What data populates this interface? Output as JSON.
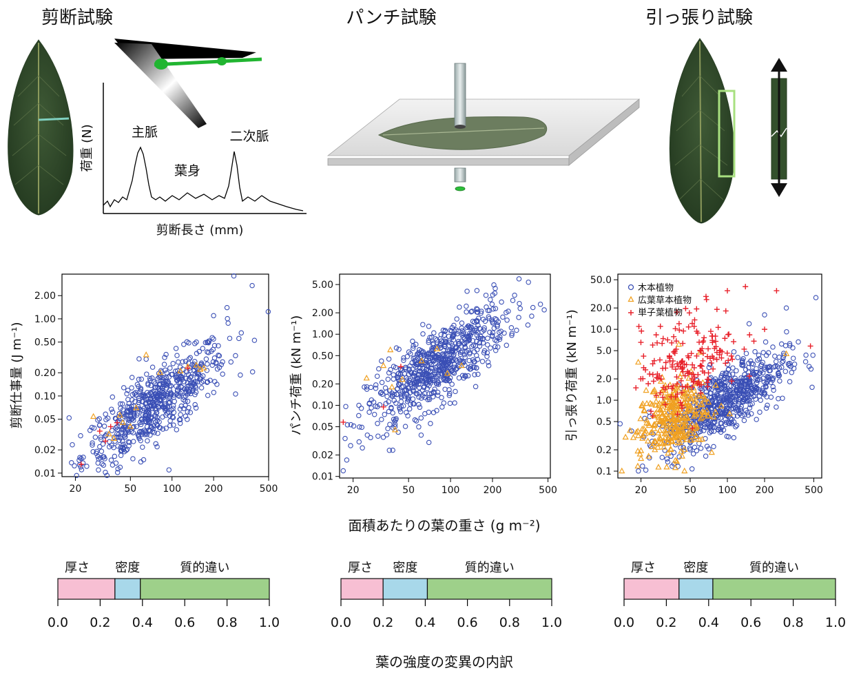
{
  "panels": [
    {
      "title": "剪断試験"
    },
    {
      "title": "パンチ試験"
    },
    {
      "title": "引っ張り試験"
    }
  ],
  "shear_trace": {
    "ylabel": "荷重 (N)",
    "xlabel": "剪断長さ (mm)",
    "labels": {
      "midrib": "主脈",
      "lamina": "葉身",
      "secondary": "二次脈"
    }
  },
  "colors": {
    "woody": "#3a4fb5",
    "herb": "#f0a020",
    "mono": "#e8202a",
    "thickness": "#f7bfd3",
    "density": "#a8d8ea",
    "quality": "#9ed08a"
  },
  "chart_data": [
    {
      "type": "scatter",
      "ylabel": "剪断仕事量 (J m⁻¹)",
      "log_x": true,
      "log_y": true,
      "xlim": [
        16,
        500
      ],
      "ylim": [
        0.009,
        3.8
      ],
      "xticks": [
        "20",
        "50",
        "100",
        "200",
        "500"
      ],
      "yticks": [
        "0.01",
        "0.02",
        "0.05",
        "0.10",
        "0.20",
        "0.50",
        "1.00",
        "2.00"
      ],
      "series": [
        {
          "marker": "circle",
          "n": 640,
          "points": [
            [
              18,
              0.052
            ],
            [
              30,
              0.022
            ],
            [
              48,
              0.09
            ],
            [
              65,
              0.3
            ],
            [
              95,
              0.011
            ],
            [
              88,
              0.009
            ],
            [
              150,
              0.5
            ],
            [
              280,
              3.6
            ],
            [
              380,
              2.7
            ],
            [
              250,
              1.4
            ],
            [
              200,
              1.1
            ],
            [
              60,
              0.05
            ],
            [
              80,
              0.07
            ],
            [
              110,
              0.12
            ],
            [
              140,
              0.15
            ],
            [
              40,
              0.04
            ]
          ]
        },
        {
          "marker": "triangle",
          "n": 14,
          "points": [
            [
              27,
              0.054
            ],
            [
              35,
              0.032
            ],
            [
              42,
              0.056
            ],
            [
              44,
              0.045
            ],
            [
              55,
              0.07
            ],
            [
              65,
              0.34
            ],
            [
              82,
              0.2
            ],
            [
              115,
              0.21
            ],
            [
              150,
              0.25
            ],
            [
              160,
              0.22
            ],
            [
              38,
              0.028
            ],
            [
              50,
              0.04
            ],
            [
              130,
              0.24
            ],
            [
              170,
              0.23
            ]
          ]
        },
        {
          "marker": "plus",
          "n": 6,
          "points": [
            [
              22,
              0.013
            ],
            [
              30,
              0.035
            ],
            [
              33,
              0.026
            ],
            [
              36,
              0.04
            ],
            [
              40,
              0.045
            ],
            [
              130,
              0.23
            ]
          ]
        }
      ]
    },
    {
      "type": "scatter",
      "ylabel": "パンチ荷重 (kN m⁻¹)",
      "log_x": true,
      "log_y": true,
      "xlim": [
        16,
        520
      ],
      "ylim": [
        0.0095,
        7.0
      ],
      "xticks": [
        "20",
        "50",
        "100",
        "200",
        "500"
      ],
      "yticks": [
        "0.01",
        "0.02",
        "0.05",
        "0.10",
        "0.20",
        "0.50",
        "1.00",
        "2.00",
        "5.00"
      ],
      "series": [
        {
          "marker": "circle",
          "n": 720,
          "points": [
            [
              17,
              0.012
            ],
            [
              18,
              0.017
            ],
            [
              22,
              0.1
            ],
            [
              310,
              6.0
            ],
            [
              470,
              2.2
            ],
            [
              40,
              0.05
            ],
            [
              60,
              0.3
            ],
            [
              90,
              0.5
            ],
            [
              120,
              0.8
            ],
            [
              200,
              1.5
            ],
            [
              70,
              0.03
            ],
            [
              80,
              0.2
            ]
          ]
        },
        {
          "marker": "triangle",
          "n": 10,
          "points": [
            [
              25,
              0.24
            ],
            [
              33,
              0.36
            ],
            [
              37,
              0.6
            ],
            [
              38,
              0.18
            ],
            [
              40,
              0.045
            ],
            [
              62,
              0.42
            ],
            [
              80,
              0.62
            ],
            [
              95,
              0.28
            ],
            [
              120,
              0.36
            ],
            [
              45,
              0.23
            ]
          ]
        },
        {
          "marker": "plus",
          "n": 3,
          "points": [
            [
              17,
              0.058
            ],
            [
              33,
              0.095
            ],
            [
              44,
              0.35
            ]
          ]
        }
      ]
    },
    {
      "type": "scatter",
      "ylabel": "引っ張り荷重 (kN m⁻¹)",
      "log_x": true,
      "log_y": true,
      "xlim": [
        13,
        580
      ],
      "ylim": [
        0.08,
        60
      ],
      "xticks": [
        "20",
        "50",
        "100",
        "200",
        "500"
      ],
      "yticks": [
        "0.1",
        "0.2",
        "0.5",
        "1.0",
        "2.0",
        "5.0",
        "10.0",
        "20.0",
        "50.0"
      ],
      "legend": {
        "position": "top-left",
        "labels": [
          "木本植物",
          "広葉草本植物",
          "単子葉植物"
        ]
      },
      "series": [
        {
          "marker": "circle",
          "n": 680,
          "points": [
            [
              520,
              28
            ],
            [
              300,
              20
            ],
            [
              200,
              16
            ],
            [
              150,
              12
            ],
            [
              100,
              1.0
            ],
            [
              60,
              0.5
            ],
            [
              50,
              0.2
            ],
            [
              80,
              2.0
            ]
          ]
        },
        {
          "marker": "triangle",
          "n": 330,
          "points": [
            [
              14,
              0.1
            ],
            [
              15,
              0.3
            ],
            [
              20,
              0.15
            ],
            [
              25,
              1.3
            ],
            [
              30,
              0.5
            ],
            [
              35,
              0.2
            ],
            [
              40,
              0.8
            ],
            [
              45,
              0.1
            ],
            [
              300,
              4.5
            ]
          ]
        },
        {
          "marker": "plus",
          "n": 190,
          "points": [
            [
              140,
              40
            ],
            [
              100,
              35
            ],
            [
              250,
              35
            ],
            [
              30,
              1.1
            ],
            [
              40,
              3.0
            ],
            [
              60,
              5.0
            ],
            [
              80,
              8.0
            ],
            [
              200,
              10
            ],
            [
              470,
              5.8
            ]
          ]
        }
      ]
    }
  ],
  "decomposition": {
    "xlabel": "葉の強度の変異の内訳",
    "ticks": [
      "0.0",
      "0.2",
      "0.4",
      "0.6",
      "0.8",
      "1.0"
    ],
    "segment_labels": [
      "厚さ",
      "密度",
      "質的違い"
    ],
    "bars": [
      {
        "thickness": 0.27,
        "density": 0.12,
        "quality": 0.61
      },
      {
        "thickness": 0.2,
        "density": 0.21,
        "quality": 0.59
      },
      {
        "thickness": 0.26,
        "density": 0.16,
        "quality": 0.58
      }
    ]
  },
  "shared_xlabel": "面積あたりの葉の重さ (g m⁻²)"
}
